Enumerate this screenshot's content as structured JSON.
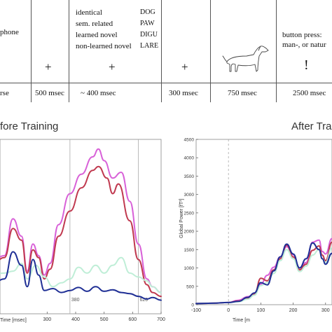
{
  "timeline": {
    "cells": [
      {
        "lines": [
          "phone"
        ],
        "symbol": "",
        "duration": "rse"
      },
      {
        "lines": [],
        "symbol": "+",
        "duration": "500 msec"
      },
      {
        "conditions": [
          "identical",
          "sem. related",
          "learned novel",
          "non-learned novel"
        ],
        "words": [
          "DOG",
          "PAW",
          "DIGU",
          "LARE"
        ],
        "symbol": "+",
        "duration": "~ 400 msec"
      },
      {
        "lines": [],
        "symbol": "+",
        "duration": "300 msec"
      },
      {
        "lines": [],
        "symbol": "dog-picture",
        "duration": "750 msec"
      },
      {
        "lines": [
          "button press:",
          "man-, or natur"
        ],
        "symbol": "!",
        "duration": "2500 msec"
      }
    ]
  },
  "chart_data": [
    {
      "type": "line",
      "title": "fore Training",
      "xlabel": "Time [msec]",
      "ylabel": "",
      "xlim": [
        100,
        700
      ],
      "ylim": [
        0,
        4500
      ],
      "xticks": [
        "300",
        "400",
        "500",
        "600",
        "700"
      ],
      "annotations": [
        "380",
        "620"
      ],
      "markers": [
        380,
        620
      ],
      "colors": {
        "magenta": "#d861d8",
        "red": "#c0394f",
        "mint": "#bfeed7",
        "navy": "#1f2f95"
      },
      "series": [
        {
          "color": "magenta",
          "x": [
            100,
            150,
            180,
            210,
            230,
            250,
            270,
            290,
            310,
            340,
            380,
            420,
            460,
            480,
            500,
            530,
            560,
            590,
            620,
            650,
            670,
            700
          ],
          "y": [
            1300,
            1500,
            2450,
            2000,
            1100,
            1800,
            1500,
            1000,
            1300,
            2300,
            3100,
            3600,
            4050,
            4250,
            3950,
            3500,
            3650,
            2900,
            1800,
            900,
            700,
            550
          ]
        },
        {
          "color": "red",
          "x": [
            100,
            150,
            180,
            210,
            230,
            250,
            270,
            290,
            310,
            340,
            380,
            420,
            460,
            480,
            510,
            530,
            550,
            590,
            620,
            650,
            670,
            700
          ],
          "y": [
            1200,
            1450,
            2200,
            1900,
            1050,
            1650,
            1450,
            900,
            1150,
            2000,
            2650,
            3250,
            3700,
            3800,
            3500,
            3100,
            3350,
            2400,
            1400,
            750,
            550,
            450
          ]
        },
        {
          "color": "mint",
          "x": [
            100,
            150,
            180,
            210,
            230,
            260,
            290,
            320,
            350,
            380,
            410,
            440,
            470,
            500,
            530,
            560,
            590,
            620,
            650,
            670,
            700
          ],
          "y": [
            1000,
            1050,
            1100,
            1300,
            900,
            1250,
            950,
            700,
            800,
            900,
            1200,
            1050,
            1250,
            1050,
            1250,
            1450,
            1050,
            950,
            850,
            700,
            550
          ]
        },
        {
          "color": "navy",
          "x": [
            100,
            150,
            180,
            210,
            230,
            250,
            270,
            290,
            320,
            350,
            380,
            410,
            440,
            470,
            500,
            530,
            560,
            590,
            620,
            650,
            670,
            700
          ],
          "y": [
            700,
            900,
            1600,
            1250,
            700,
            1400,
            1000,
            600,
            650,
            550,
            600,
            680,
            580,
            700,
            580,
            620,
            550,
            520,
            450,
            380,
            420,
            350
          ]
        }
      ]
    },
    {
      "type": "line",
      "title": "After Tra",
      "xlabel": "Time [m",
      "ylabel": "Global Power [fT²]",
      "xlim": [
        -100,
        320
      ],
      "ylim": [
        0,
        4500
      ],
      "yticks": [
        "0",
        "500",
        "1000",
        "1500",
        "2000",
        "2500",
        "3000",
        "3500",
        "4000",
        "4500"
      ],
      "xticks": [
        "-100",
        "0",
        "100",
        "200",
        "300"
      ],
      "markers": [
        0
      ],
      "colors": {
        "magenta": "#d861d8",
        "red": "#c0394f",
        "mint": "#bfeed7",
        "navy": "#1f2f95"
      },
      "series": [
        {
          "color": "magenta",
          "x": [
            -100,
            -50,
            0,
            30,
            60,
            80,
            100,
            120,
            140,
            160,
            180,
            200,
            220,
            240,
            260,
            280,
            290,
            300,
            320
          ],
          "y": [
            30,
            40,
            60,
            120,
            220,
            300,
            560,
            800,
            1020,
            1300,
            1580,
            1360,
            1000,
            1150,
            1700,
            1760,
            1450,
            1380,
            1800
          ]
        },
        {
          "color": "red",
          "x": [
            -100,
            -50,
            0,
            30,
            60,
            80,
            100,
            120,
            140,
            160,
            180,
            200,
            220,
            240,
            260,
            280,
            290,
            300,
            320
          ],
          "y": [
            30,
            40,
            60,
            100,
            180,
            280,
            720,
            650,
            950,
            1250,
            1620,
            1300,
            950,
            1100,
            1480,
            1600,
            1350,
            1200,
            1700
          ]
        },
        {
          "color": "mint",
          "x": [
            -100,
            -50,
            0,
            30,
            60,
            80,
            100,
            120,
            140,
            160,
            180,
            200,
            220,
            240,
            260,
            280,
            290,
            300,
            320
          ],
          "y": [
            30,
            40,
            60,
            80,
            150,
            260,
            520,
            600,
            850,
            1200,
            1500,
            1250,
            900,
            1050,
            1350,
            1500,
            1250,
            1150,
            1550
          ]
        },
        {
          "color": "navy",
          "x": [
            -100,
            -50,
            0,
            30,
            60,
            80,
            100,
            120,
            140,
            160,
            180,
            200,
            220,
            240,
            260,
            280,
            290,
            300,
            320
          ],
          "y": [
            30,
            40,
            60,
            90,
            200,
            320,
            600,
            540,
            920,
            1300,
            1650,
            1380,
            1000,
            1250,
            1680,
            1500,
            1250,
            1100,
            1400
          ]
        }
      ]
    }
  ]
}
